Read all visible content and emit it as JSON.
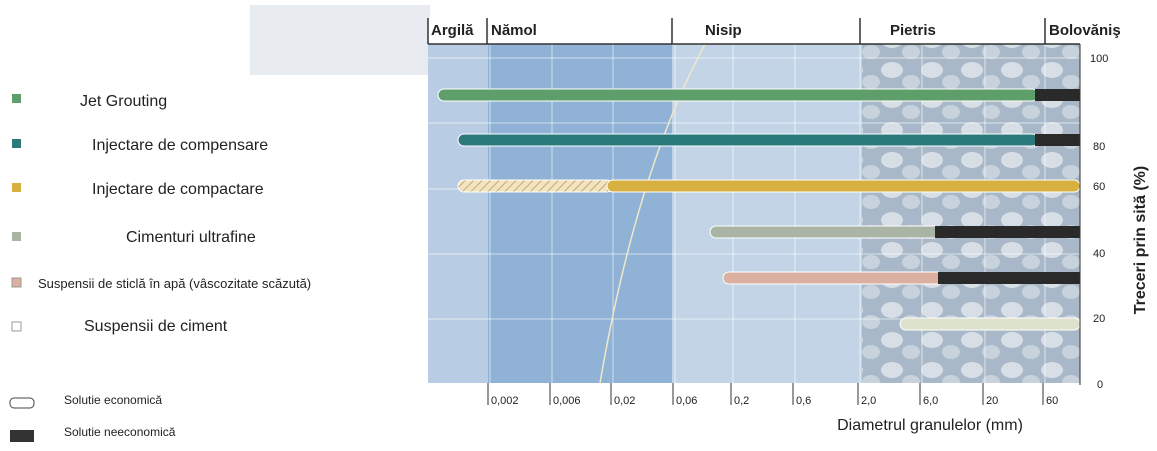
{
  "zones": [
    "Argilă",
    "Nămol",
    "Nisip",
    "Pietris",
    "Bolovăniş"
  ],
  "methods": [
    "Jet Grouting",
    "Injectare de compensare",
    "Injectare de compactare",
    "Cimenturi ultrafine",
    "Suspensii de sticlă în apă (vâscozitate scăzută)",
    "Suspensii de ciment"
  ],
  "legend": [
    "Solutie economică",
    "Solutie neeconomică"
  ],
  "y_axis": {
    "title": "Treceri prin sită (%)",
    "ticks": [
      100,
      80,
      60,
      40,
      20,
      0
    ]
  },
  "x_axis": {
    "title": "Diametrul granulelor (mm)",
    "ticks": [
      "0,002",
      "0,006",
      "0,02",
      "0,06",
      "0,2",
      "0,6",
      "2,0",
      "6,0",
      "20",
      "60"
    ]
  }
}
